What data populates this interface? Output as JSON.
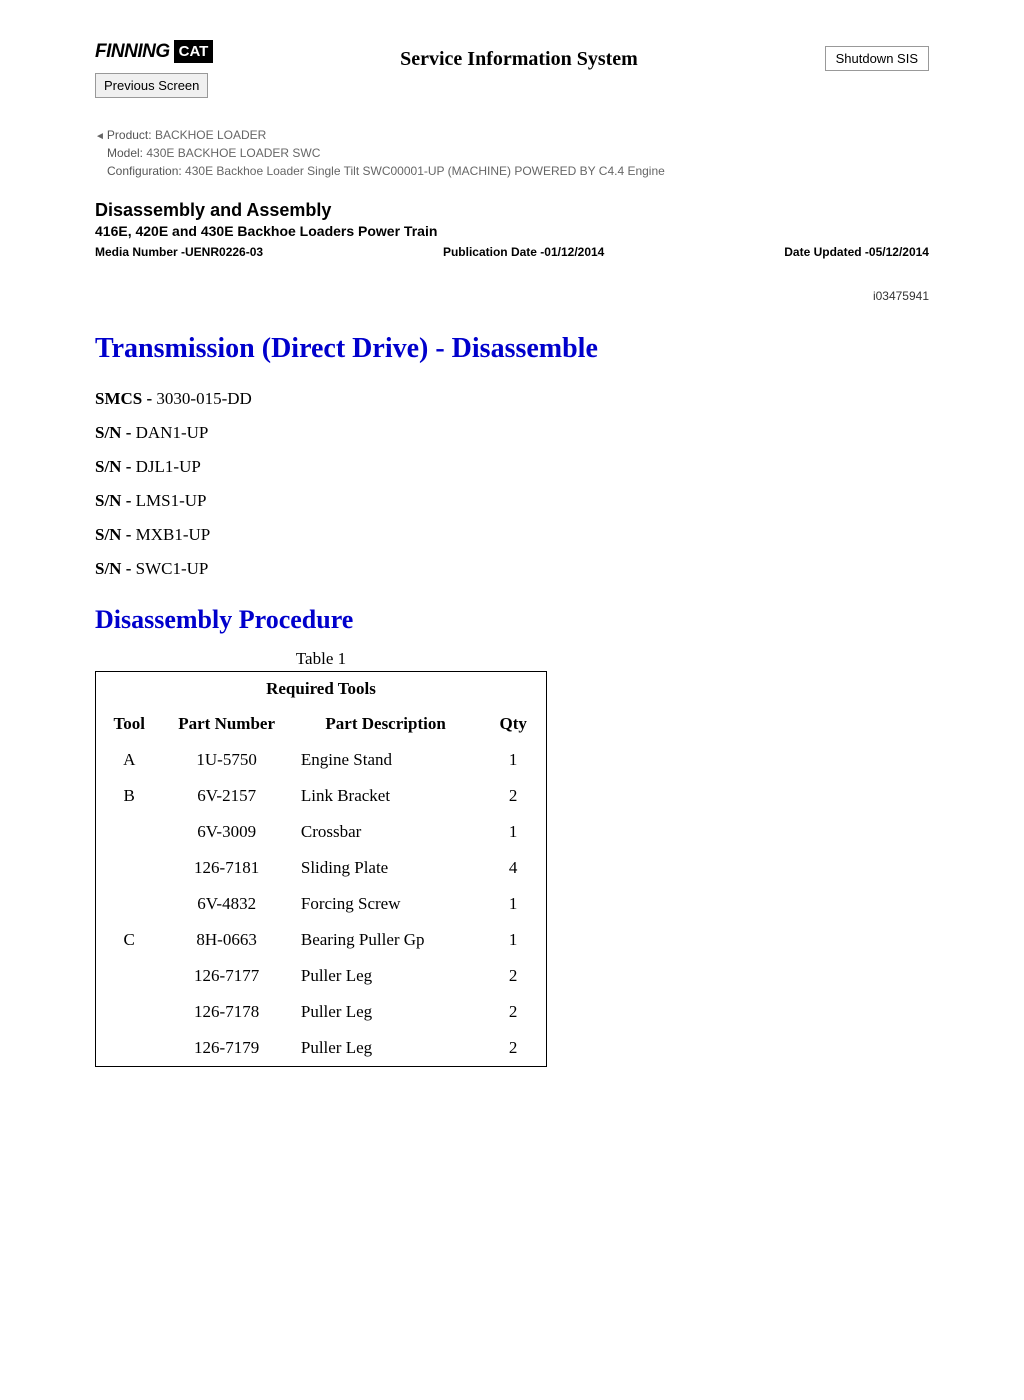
{
  "header": {
    "logo_text": "FINNING",
    "logo_badge": "CAT",
    "sis_title": "Service Information System",
    "prev_btn": "Previous Screen",
    "shutdown_btn": "Shutdown SIS"
  },
  "meta": {
    "product_label": "Product:",
    "product_value": "  BACKHOE LOADER",
    "model_label": "Model:",
    "model_value": "  430E BACKHOE LOADER SWC",
    "config_label": "Configuration:",
    "config_value": " 430E Backhoe Loader Single Tilt SWC00001-UP (MACHINE) POWERED BY C4.4 Engine"
  },
  "doc": {
    "h1": "Disassembly and Assembly",
    "h2": "416E, 420E and 430E Backhoe Loaders Power Train",
    "media": "Media Number -UENR0226-03",
    "pub_date": "Publication Date -01/12/2014",
    "date_updated": "Date Updated -05/12/2014",
    "doc_id": "i03475941",
    "title": "Transmission (Direct Drive) - Disassemble"
  },
  "specs": [
    {
      "label": "SMCS - ",
      "value": "3030-015-DD"
    },
    {
      "label": "S/N - ",
      "value": "DAN1-UP"
    },
    {
      "label": "S/N - ",
      "value": "DJL1-UP"
    },
    {
      "label": "S/N - ",
      "value": "LMS1-UP"
    },
    {
      "label": "S/N - ",
      "value": "MXB1-UP"
    },
    {
      "label": "S/N - ",
      "value": "SWC1-UP"
    }
  ],
  "procedure": {
    "subtitle": "Disassembly Procedure",
    "table_caption": "Table 1",
    "table_title": "Required Tools",
    "columns": [
      "Tool",
      "Part Number",
      "Part Description",
      "Qty"
    ],
    "rows": [
      {
        "tool": "A",
        "pn": "1U-5750",
        "desc": "Engine Stand",
        "qty": "1"
      },
      {
        "tool": "B",
        "pn": "6V-2157",
        "desc": "Link Bracket",
        "qty": "2"
      },
      {
        "tool": "",
        "pn": "6V-3009",
        "desc": "Crossbar",
        "qty": "1"
      },
      {
        "tool": "",
        "pn": "126-7181",
        "desc": "Sliding Plate",
        "qty": "4"
      },
      {
        "tool": "",
        "pn": "6V-4832",
        "desc": "Forcing Screw",
        "qty": "1"
      },
      {
        "tool": "C",
        "pn": "8H-0663",
        "desc": "Bearing Puller Gp",
        "qty": "1"
      },
      {
        "tool": "",
        "pn": "126-7177",
        "desc": "Puller Leg",
        "qty": "2"
      },
      {
        "tool": "",
        "pn": "126-7178",
        "desc": "Puller Leg",
        "qty": "2"
      },
      {
        "tool": "",
        "pn": "126-7179",
        "desc": "Puller Leg",
        "qty": "2"
      }
    ]
  }
}
